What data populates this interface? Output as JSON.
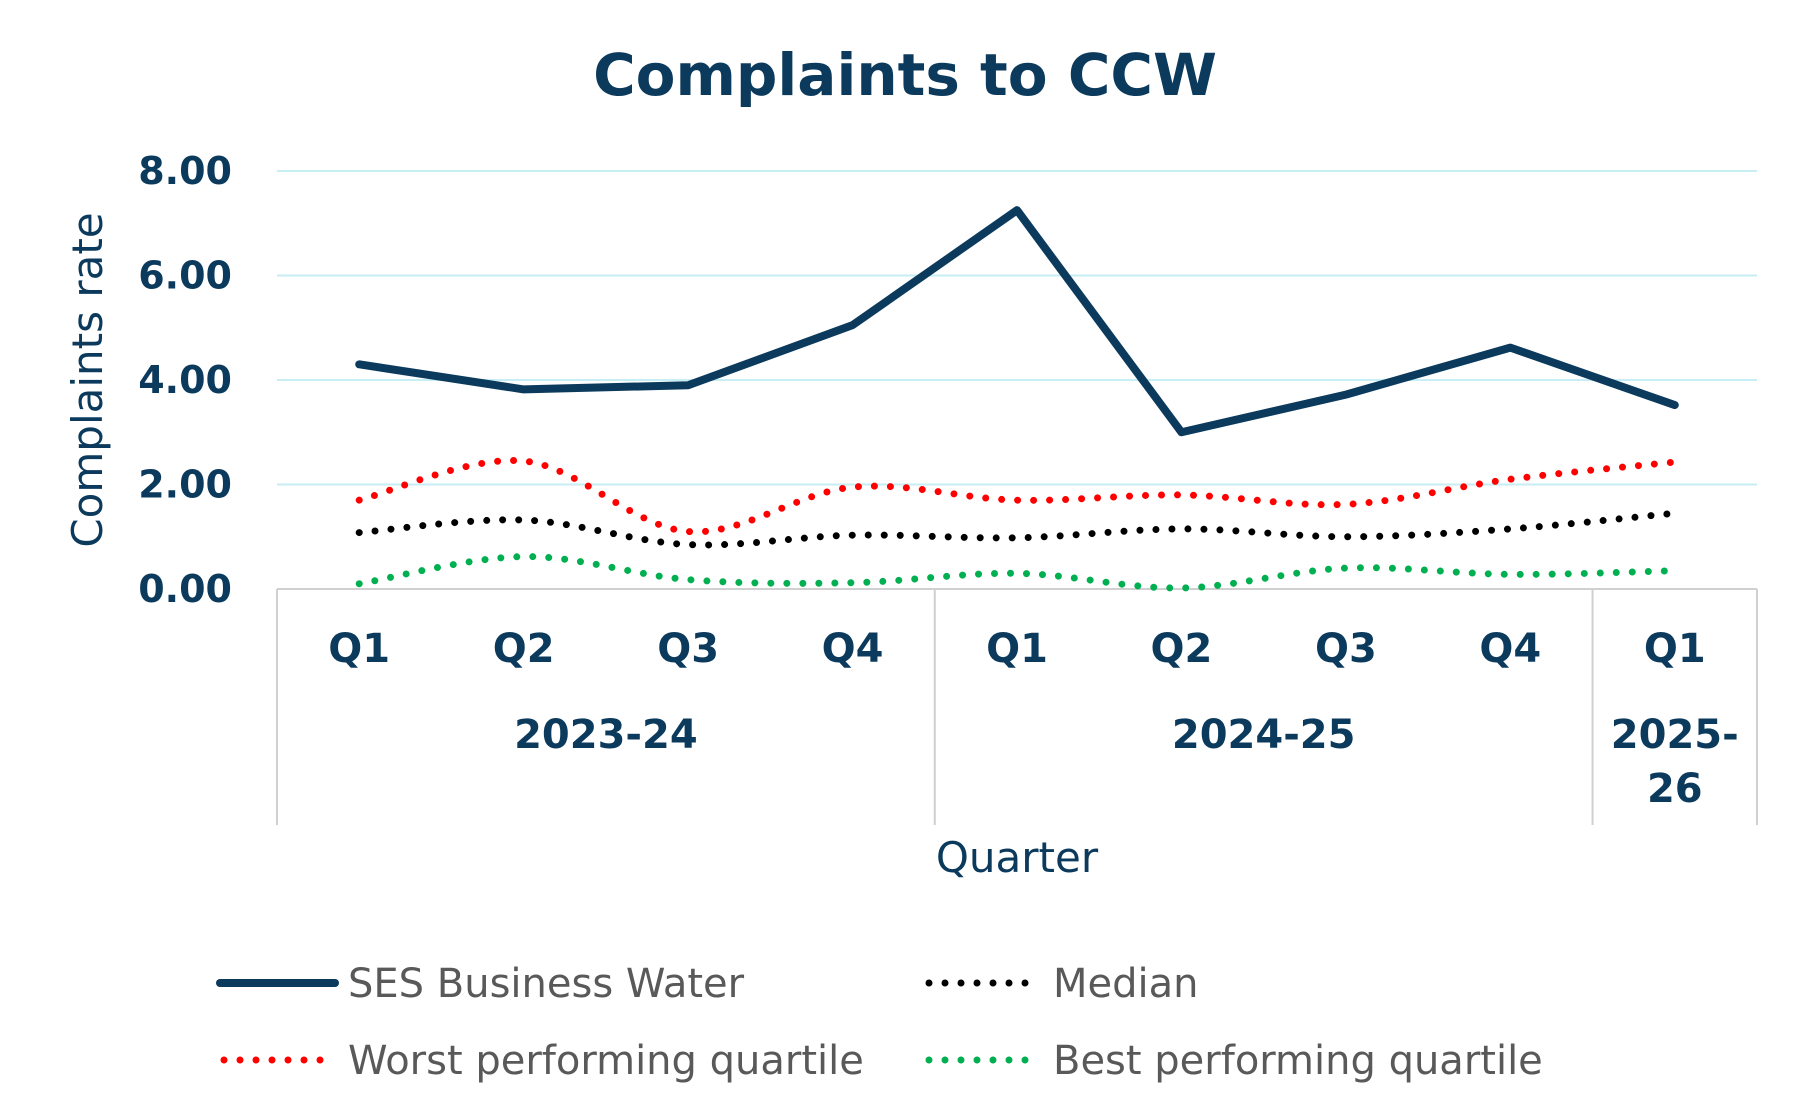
{
  "chart_data": {
    "type": "line",
    "title": "Complaints to CCW",
    "xlabel": "Quarter",
    "ylabel": "Complaints rate",
    "ylim": [
      0,
      8
    ],
    "yticks": [
      "0.00",
      "2.00",
      "4.00",
      "6.00",
      "8.00"
    ],
    "grid": true,
    "legend_position": "bottom",
    "categories": [
      "Q1",
      "Q2",
      "Q3",
      "Q4",
      "Q1",
      "Q2",
      "Q3",
      "Q4",
      "Q1"
    ],
    "groups": [
      {
        "label": "2023-24",
        "count": 4
      },
      {
        "label": "2024-25",
        "count": 4
      },
      {
        "label": "2025-\n26",
        "label_lines": [
          "2025-",
          "26"
        ],
        "count": 1
      }
    ],
    "series": [
      {
        "name": "SES Business Water",
        "style": "solid",
        "color": "#0b3a5c",
        "values": [
          4.3,
          3.82,
          3.9,
          5.05,
          7.25,
          3.0,
          3.72,
          4.62,
          3.52
        ]
      },
      {
        "name": "Median",
        "style": "dotted",
        "color": "#000000",
        "values": [
          1.08,
          1.32,
          0.85,
          1.03,
          0.98,
          1.15,
          1.0,
          1.15,
          1.45
        ]
      },
      {
        "name": "Worst performing quartile",
        "style": "dotted",
        "color": "#ff0000",
        "values": [
          1.7,
          2.45,
          1.1,
          1.95,
          1.7,
          1.8,
          1.62,
          2.1,
          2.43
        ]
      },
      {
        "name": "Best performing quartile",
        "style": "dotted",
        "color": "#00b050",
        "values": [
          0.1,
          0.62,
          0.18,
          0.12,
          0.3,
          0.02,
          0.4,
          0.28,
          0.35
        ]
      }
    ],
    "colors": {
      "title": "#0b3a5c",
      "gridline": "#c6eef4",
      "axis": "#d0d0d0",
      "legend_text": "#595959"
    }
  }
}
